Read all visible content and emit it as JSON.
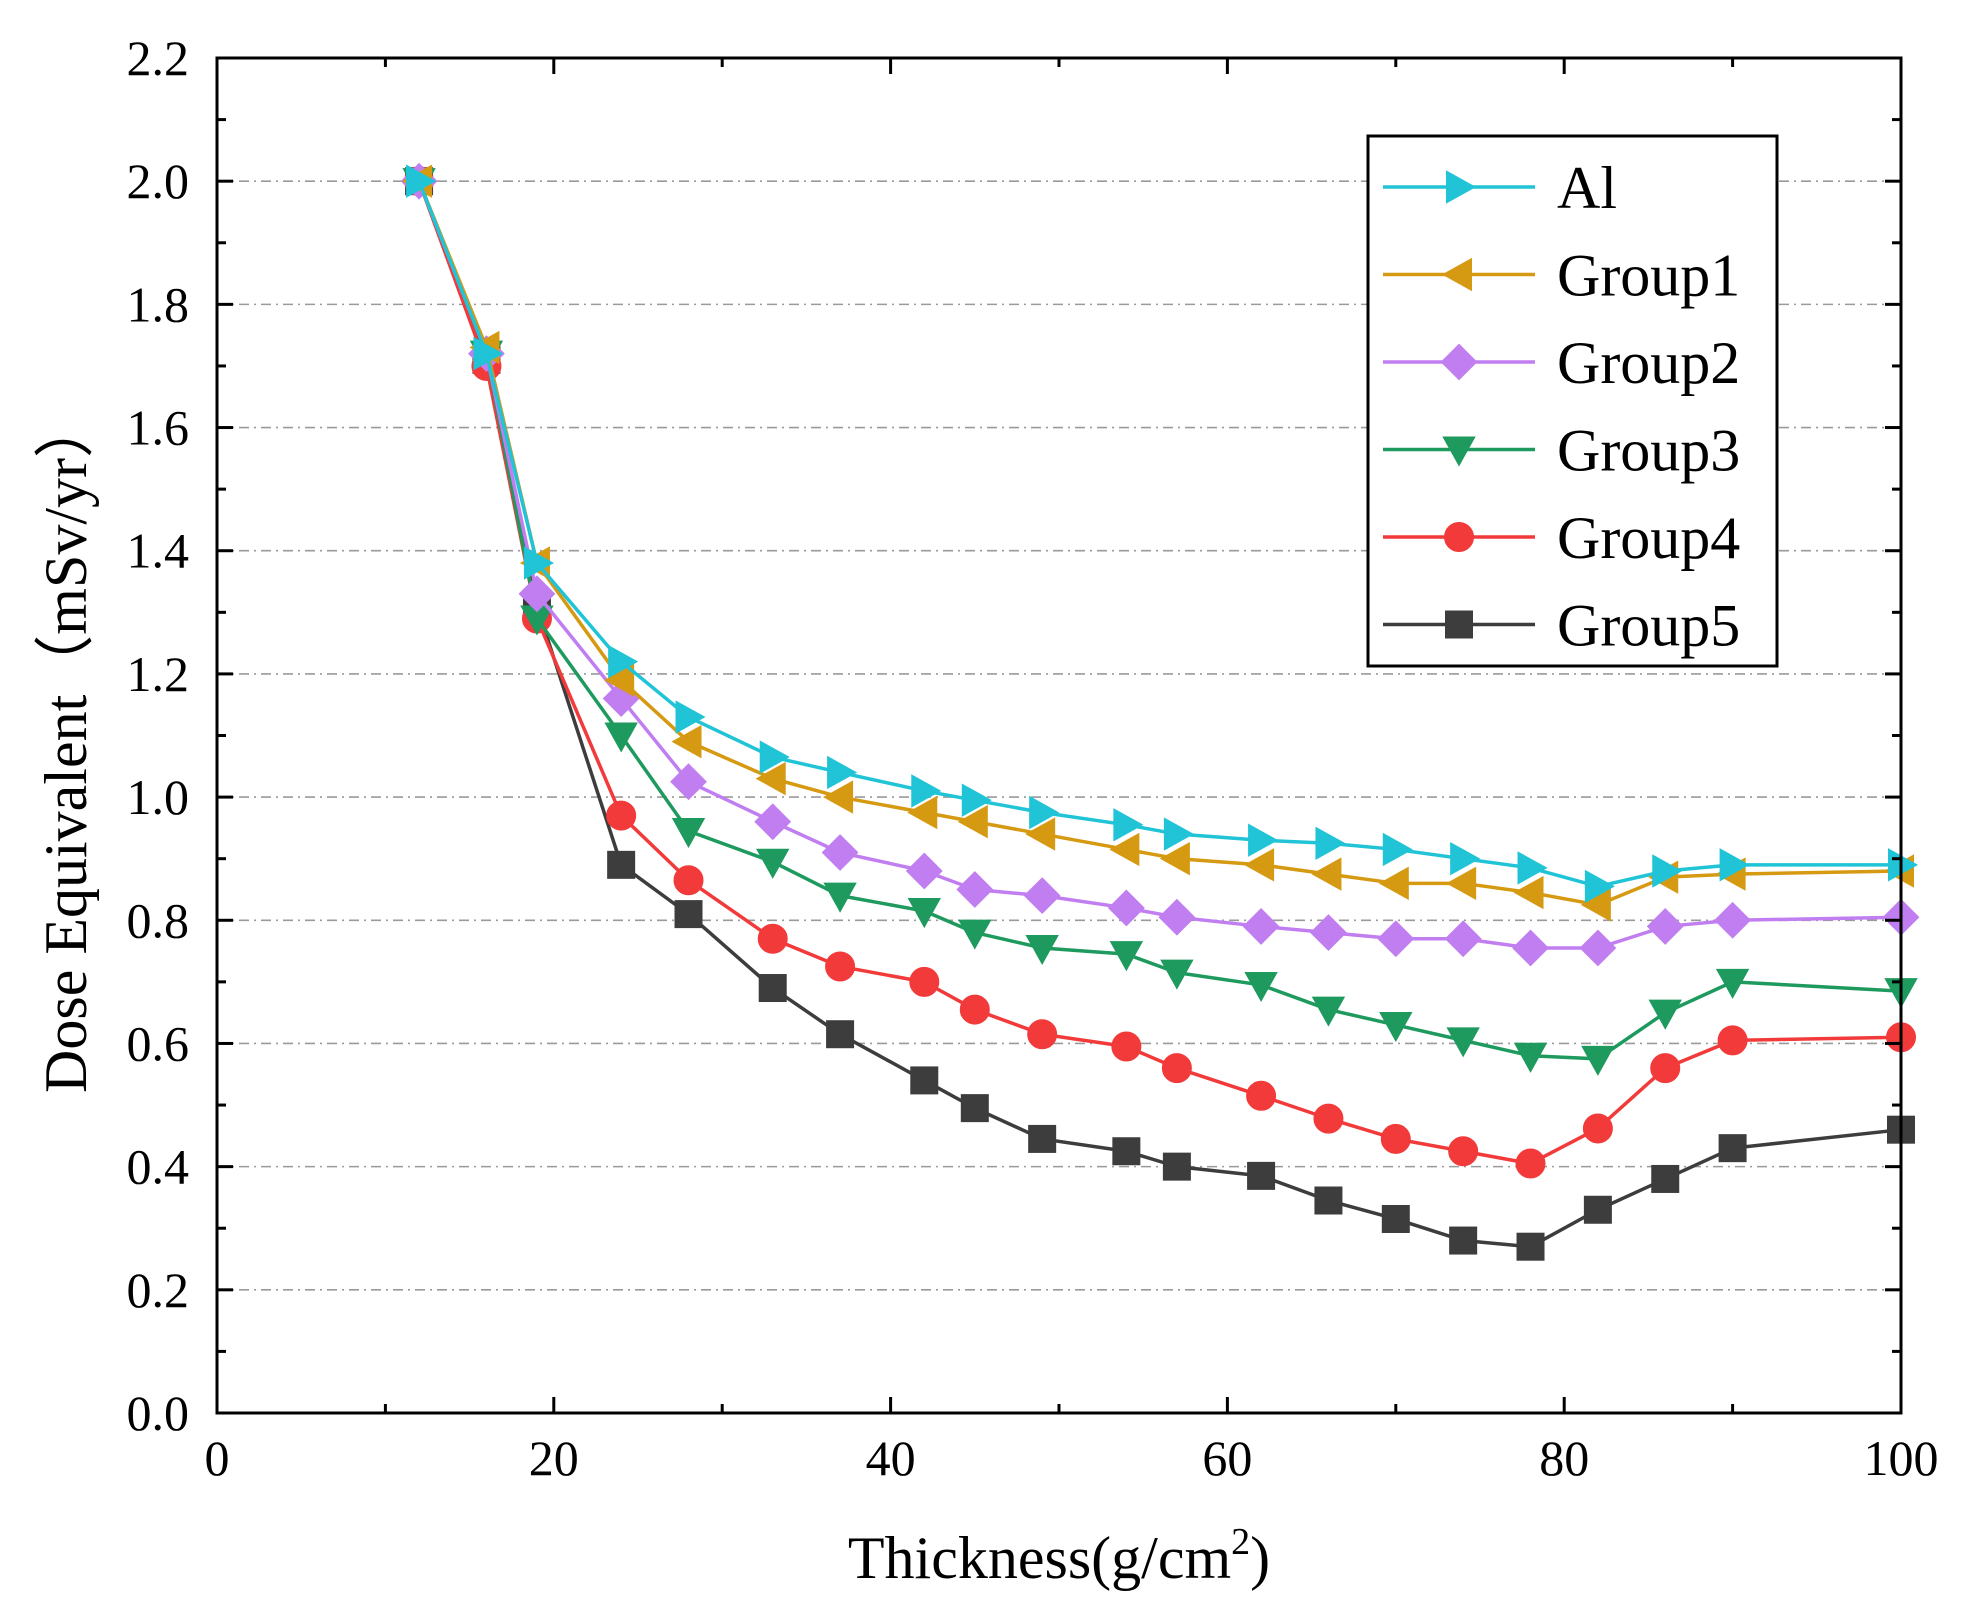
{
  "chart_data": {
    "type": "line",
    "xlabel": "Thickness(g/cm",
    "xlabel_sup": "2",
    "xlabel_end": ")",
    "ylabel": "Dose Equivalent（mSv/yr）",
    "xlim": [
      0,
      100
    ],
    "ylim": [
      0,
      2.2
    ],
    "xticks": [
      0,
      20,
      40,
      60,
      80,
      100
    ],
    "xtick_labels": [
      "0",
      "20",
      "40",
      "60",
      "80",
      "100"
    ],
    "yticks": [
      0,
      0.2,
      0.4,
      0.6,
      0.8,
      1.0,
      1.2,
      1.4,
      1.6,
      1.8,
      2.0,
      2.2
    ],
    "ytick_labels": [
      "0.0",
      "0.2",
      "0.4",
      "0.6",
      "0.8",
      "1.0",
      "1.2",
      "1.4",
      "1.6",
      "1.8",
      "2.0",
      "2.2"
    ],
    "grid": "horizontal dashed",
    "legend_position": "top-right",
    "x": [
      12,
      16,
      19,
      24,
      28,
      33,
      37,
      42,
      45,
      49,
      54,
      57,
      62,
      66,
      70,
      74,
      78,
      82,
      86,
      90,
      100
    ],
    "series": [
      {
        "name": "Group5",
        "color": "#3d3d3d",
        "marker": "square",
        "values": [
          2.0,
          1.71,
          1.31,
          0.89,
          0.81,
          0.69,
          0.615,
          0.54,
          0.495,
          0.445,
          0.425,
          0.4,
          0.385,
          0.345,
          0.315,
          0.28,
          0.27,
          0.33,
          0.38,
          0.43,
          0.46
        ]
      },
      {
        "name": "Group4",
        "color": "#f23a3a",
        "marker": "circle",
        "values": [
          2.0,
          1.7,
          1.29,
          0.97,
          0.865,
          0.77,
          0.725,
          0.7,
          0.655,
          0.615,
          0.595,
          0.56,
          0.515,
          0.478,
          0.445,
          0.425,
          0.405,
          0.462,
          0.56,
          0.605,
          0.61
        ]
      },
      {
        "name": "Group3",
        "color": "#1e9a5e",
        "marker": "triangle-down",
        "values": [
          2.0,
          1.72,
          1.29,
          1.1,
          0.945,
          0.895,
          0.84,
          0.815,
          0.78,
          0.755,
          0.745,
          0.715,
          0.695,
          0.655,
          0.63,
          0.605,
          0.58,
          0.575,
          0.65,
          0.7,
          0.685
        ]
      },
      {
        "name": "Group2",
        "color": "#c07ef0",
        "marker": "diamond",
        "values": [
          2.0,
          1.72,
          1.33,
          1.16,
          1.025,
          0.96,
          0.91,
          0.88,
          0.85,
          0.84,
          0.82,
          0.805,
          0.79,
          0.78,
          0.77,
          0.77,
          0.755,
          0.755,
          0.79,
          0.8,
          0.805
        ]
      },
      {
        "name": "Group1",
        "color": "#d69a12",
        "marker": "triangle-left",
        "values": [
          2.0,
          1.73,
          1.38,
          1.19,
          1.09,
          1.03,
          1.0,
          0.975,
          0.96,
          0.94,
          0.915,
          0.9,
          0.89,
          0.875,
          0.86,
          0.86,
          0.845,
          0.825,
          0.87,
          0.875,
          0.88
        ]
      },
      {
        "name": "Al",
        "color": "#20c4d6",
        "marker": "triangle-right",
        "values": [
          2.0,
          1.72,
          1.38,
          1.22,
          1.13,
          1.065,
          1.04,
          1.01,
          0.995,
          0.975,
          0.955,
          0.94,
          0.93,
          0.925,
          0.915,
          0.9,
          0.885,
          0.855,
          0.88,
          0.89,
          0.89
        ]
      }
    ],
    "legend_order": [
      "Al",
      "Group1",
      "Group2",
      "Group3",
      "Group4",
      "Group5"
    ]
  }
}
